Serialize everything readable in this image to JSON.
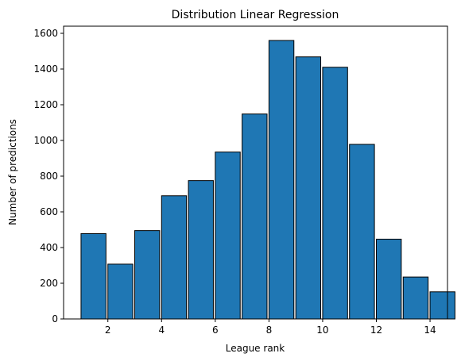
{
  "chart_data": {
    "type": "bar",
    "title": "Distribution Linear Regression",
    "xlabel": "League rank",
    "ylabel": "Number of predictions",
    "bin_edges": [
      1,
      2,
      3,
      4,
      5,
      6,
      7,
      8,
      9,
      10,
      11,
      12,
      13,
      14
    ],
    "bin_width": 0.9286,
    "values": [
      478,
      307,
      495,
      690,
      775,
      935,
      1148,
      1560,
      1468,
      1410,
      978,
      447,
      235,
      152
    ],
    "xlim": [
      0.35,
      14.65
    ],
    "ylim": [
      0,
      1640
    ],
    "xticks": [
      2,
      4,
      6,
      8,
      10,
      12,
      14
    ],
    "yticks": [
      0,
      200,
      400,
      600,
      800,
      1000,
      1200,
      1400,
      1600
    ],
    "grid": false,
    "bar_color": "#1f77b4",
    "edge_color": "#000000"
  }
}
